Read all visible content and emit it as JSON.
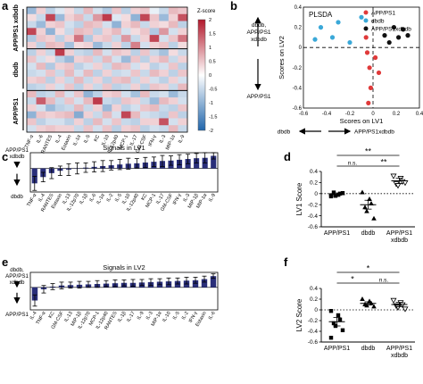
{
  "panel_letters": {
    "a": "a",
    "b": "b",
    "c": "c",
    "d": "d",
    "e": "e",
    "f": "f"
  },
  "chart_data": [
    {
      "panel": "a",
      "type": "heatmap",
      "colorbar": {
        "title": "Z-score",
        "ticks": [
          "2",
          "1.5",
          "1",
          "0.5",
          "0",
          "-0.5",
          "-1",
          "-1.5",
          "-2"
        ],
        "min": -2,
        "max": 2
      },
      "columns": [
        "TNF-α",
        "IL-6",
        "RANTES",
        "IL-4",
        "Eotaxin",
        "IL-1α",
        "IL-5",
        "KC",
        "IL-10",
        "IL-12p40",
        "MCP-1",
        "IL-17",
        "GM-CSF",
        "IFN-γ",
        "IL-3",
        "MIP-1α",
        "IL-9"
      ],
      "row_groups": [
        {
          "label": "APP/PS1 xdbdb",
          "rows": 6
        },
        {
          "label": "dbdb",
          "rows": 6
        },
        {
          "label": "APP/PS1",
          "rows": 6
        }
      ],
      "values": [
        [
          -0.9,
          0.4,
          -0.6,
          -0.3,
          0.3,
          -0.5,
          0.6,
          -0.4,
          -0.7,
          0.5,
          -0.6,
          0.4,
          0.5,
          -0.2,
          -0.5,
          0.6,
          0.5
        ],
        [
          0.3,
          -0.5,
          1.6,
          -0.9,
          0.4,
          0.6,
          -0.5,
          0.9,
          1.7,
          -0.3,
          0.3,
          -1.0,
          1.6,
          0.5,
          -0.9,
          0.4,
          1.5
        ],
        [
          -0.5,
          -0.9,
          0.4,
          0.5,
          -0.4,
          -0.6,
          0.6,
          0.5,
          -0.4,
          -1.0,
          0.4,
          0.6,
          -0.5,
          0.4,
          0.3,
          0.6,
          -0.6
        ],
        [
          1.6,
          0.4,
          -1.0,
          0.3,
          -0.5,
          0.6,
          0.5,
          -0.6,
          0.4,
          0.6,
          -0.4,
          0.3,
          0.5,
          -0.7,
          0.9,
          -0.4,
          0.4
        ],
        [
          -0.7,
          0.5,
          0.4,
          -0.6,
          0.4,
          1.2,
          -0.7,
          0.4,
          0.5,
          -0.5,
          0.9,
          -0.5,
          0.4,
          1.6,
          -0.4,
          0.5,
          1.2
        ],
        [
          0.4,
          -0.6,
          0.6,
          0.5,
          -0.8,
          0.3,
          0.4,
          -0.9,
          -0.5,
          0.4,
          -0.6,
          1.1,
          -0.4,
          0.4,
          0.5,
          -0.6,
          0.3
        ],
        [
          -0.6,
          0.4,
          -0.5,
          1.7,
          0.4,
          -0.5,
          -0.6,
          0.6,
          -0.4,
          0.5,
          0.4,
          -0.6,
          0.5,
          -0.5,
          -0.8,
          0.3,
          -0.5
        ],
        [
          0.5,
          -0.4,
          0.3,
          -0.6,
          -0.9,
          0.4,
          0.5,
          -0.5,
          0.6,
          -0.4,
          -0.9,
          0.5,
          -0.6,
          0.4,
          0.6,
          -0.5,
          0.4
        ],
        [
          -0.4,
          0.6,
          -0.7,
          0.4,
          0.5,
          -0.6,
          -0.4,
          0.4,
          -0.5,
          0.6,
          0.5,
          -0.4,
          0.3,
          -0.6,
          -0.4,
          0.5,
          -0.6
        ],
        [
          -0.5,
          -0.4,
          0.5,
          -0.5,
          0.6,
          -0.4,
          0.6,
          -0.6,
          0.4,
          -0.5,
          -0.4,
          0.5,
          -0.5,
          0.6,
          0.4,
          -0.6,
          0.5
        ],
        [
          0.4,
          0.5,
          -0.6,
          0.4,
          -0.5,
          0.6,
          -0.5,
          0.4,
          -0.6,
          0.5,
          0.6,
          -0.5,
          0.4,
          -0.4,
          -0.6,
          0.4,
          -0.4
        ],
        [
          -0.6,
          -0.5,
          0.4,
          -0.4,
          0.5,
          -0.6,
          0.4,
          -0.5,
          0.5,
          -0.6,
          -0.5,
          0.4,
          -0.6,
          0.5,
          0.4,
          -0.5,
          0.6
        ],
        [
          0.6,
          -0.6,
          -0.5,
          0.6,
          -0.4,
          0.5,
          -1.0,
          -0.6,
          0.4,
          0.5,
          -0.4,
          -0.8,
          0.6,
          -0.5,
          -0.4,
          -0.9,
          -0.5
        ],
        [
          -0.5,
          1.4,
          0.6,
          -0.5,
          0.5,
          -0.4,
          0.6,
          1.7,
          -0.5,
          -0.6,
          0.5,
          0.4,
          -0.5,
          -0.9,
          0.6,
          0.4,
          -0.4
        ],
        [
          0.4,
          -0.4,
          -0.9,
          -0.6,
          -0.5,
          0.6,
          -0.5,
          0.4,
          -0.9,
          0.4,
          -0.6,
          -0.4,
          0.5,
          0.6,
          -0.5,
          -0.6,
          0.5
        ],
        [
          -1.0,
          0.5,
          0.4,
          0.5,
          0.6,
          -1.1,
          0.4,
          -0.5,
          0.6,
          -0.4,
          1.6,
          0.6,
          -0.4,
          -0.5,
          -0.6,
          0.5,
          -0.6
        ],
        [
          0.5,
          -0.6,
          -0.4,
          -0.4,
          -0.6,
          0.4,
          -0.6,
          0.6,
          -0.4,
          0.5,
          -0.5,
          -0.6,
          0.4,
          0.4,
          1.5,
          -0.4,
          0.4
        ],
        [
          -0.4,
          0.4,
          0.5,
          0.4,
          0.4,
          -0.5,
          0.5,
          -0.4,
          0.5,
          -0.6,
          0.4,
          0.5,
          -0.6,
          -0.4,
          -0.5,
          0.6,
          -0.5
        ]
      ]
    },
    {
      "panel": "b",
      "type": "scatter",
      "title": "PLSDA",
      "xlabel": "Scores on LV1",
      "ylabel": "Scores on LV2",
      "xlim": [
        -0.6,
        0.4
      ],
      "ylim": [
        -0.6,
        0.4
      ],
      "xticks": [
        "-0.6",
        "-0.4",
        "-0.2",
        "0",
        "0.2",
        "0.4"
      ],
      "yticks": [
        "0.4",
        "0.2",
        "0",
        "-0.2",
        "-0.4",
        "-0.6"
      ],
      "legend_position": "top-right",
      "series": [
        {
          "name": "APP/PS1",
          "color": "#e03a3a",
          "points": [
            [
              -0.05,
              -0.05
            ],
            [
              0.02,
              -0.1
            ],
            [
              -0.03,
              -0.2
            ],
            [
              0.05,
              -0.25
            ],
            [
              -0.02,
              -0.4
            ],
            [
              -0.04,
              -0.55
            ],
            [
              -0.06,
              0.1
            ]
          ]
        },
        {
          "name": "dbdb",
          "color": "#3aa8d8",
          "points": [
            [
              -0.45,
              0.2
            ],
            [
              -0.3,
              0.25
            ],
            [
              -0.5,
              0.08
            ],
            [
              -0.2,
              0.05
            ],
            [
              -0.1,
              0.3
            ],
            [
              -0.35,
              0.1
            ]
          ]
        },
        {
          "name": "APP/PS1xdbdb",
          "color": "#111111",
          "points": [
            [
              0.1,
              0.12
            ],
            [
              0.18,
              0.2
            ],
            [
              0.22,
              0.1
            ],
            [
              0.26,
              0.18
            ],
            [
              0.3,
              0.12
            ],
            [
              0.14,
              0.05
            ]
          ]
        }
      ],
      "left_arrow_top": "dbdb, APP/PS1 xdbdb",
      "left_arrow_bottom": "APP/PS1",
      "bottom_arrow_left": "dbdb",
      "bottom_arrow_right": "APP/PS1xdbdb"
    },
    {
      "panel": "c",
      "type": "bar",
      "title": "Signals in LV1",
      "ylim": [
        -0.6,
        0.4
      ],
      "arrow_top": "APP/PS1 xdbdb",
      "arrow_bottom": "dbdb",
      "bar_color": "#2a2f7a",
      "categories": [
        "TNF-α",
        "IL-4",
        "RANTES",
        "Eotaxin",
        "IL-13",
        "IL-12p70",
        "IL-1β",
        "IL-6",
        "IL-1α",
        "IL-2",
        "IL-5",
        "IL-10",
        "IL-12p40",
        "KC",
        "MCP-1",
        "IL-17",
        "GM-CSF",
        "IFN-γ",
        "IL-3",
        "MIP-1β",
        "MIP-1α",
        "IL-9"
      ],
      "values": [
        -0.38,
        -0.22,
        -0.12,
        -0.06,
        -0.03,
        0.0,
        0.02,
        0.04,
        0.06,
        0.08,
        0.1,
        0.12,
        0.13,
        0.15,
        0.17,
        0.19,
        0.2,
        0.22,
        0.24,
        0.26,
        0.27,
        0.32
      ],
      "errors": [
        0.18,
        0.12,
        0.14,
        0.12,
        0.15,
        0.14,
        0.12,
        0.13,
        0.14,
        0.12,
        0.13,
        0.14,
        0.12,
        0.13,
        0.12,
        0.14,
        0.12,
        0.13,
        0.12,
        0.12,
        0.13,
        0.08
      ]
    },
    {
      "panel": "d",
      "type": "scatter",
      "ylabel": "LV1 Score",
      "ylim": [
        -0.6,
        0.4
      ],
      "yticks": [
        "0.4",
        "0.2",
        "0",
        "-0.2",
        "-0.4",
        "-0.6"
      ],
      "categories": [
        "APP/PS1",
        "dbdb",
        "APP/PS1 xdbdb"
      ],
      "groups": [
        {
          "name": "APP/PS1",
          "mean": -0.02,
          "sem": 0.03,
          "points": [
            -0.05,
            -0.02,
            0.0,
            0.02,
            -0.04,
            0.01,
            -0.03
          ]
        },
        {
          "name": "dbdb",
          "mean": -0.2,
          "sem": 0.08,
          "points": [
            0.02,
            -0.1,
            -0.18,
            -0.25,
            -0.32,
            -0.45
          ]
        },
        {
          "name": "APP/PS1 xdbdb",
          "mean": 0.23,
          "sem": 0.05,
          "points": [
            0.32,
            0.28,
            0.22,
            0.18,
            0.15,
            0.2
          ]
        }
      ],
      "brackets": [
        {
          "from": 0,
          "to": 2,
          "label": "**",
          "level": 1
        },
        {
          "from": 1,
          "to": 2,
          "label": "**",
          "level": 0
        },
        {
          "from": 0,
          "to": 1,
          "label": "n.s.",
          "level": 0
        }
      ]
    },
    {
      "panel": "e",
      "type": "bar",
      "title": "Signals in LV2",
      "ylim": [
        -0.6,
        0.4
      ],
      "arrow_top": "dbdb, APP/PS1 xdbdb",
      "arrow_bottom": "APP/PS1",
      "bar_color": "#2a2f7a",
      "categories": [
        "IL-4",
        "TNF-α",
        "KC",
        "GM-CSF",
        "IL-13",
        "MIP-1β",
        "IL-12p70",
        "MCP-1",
        "IL-12p40",
        "RANTES",
        "IL-1β",
        "IL-17",
        "IL-9",
        "IL-3",
        "MIP-1α",
        "IL-10",
        "IL-5",
        "IL-2",
        "IFN-γ",
        "Eotaxin",
        "IL-6"
      ],
      "values": [
        -0.35,
        -0.05,
        0.02,
        0.05,
        0.06,
        0.07,
        0.08,
        0.09,
        0.1,
        0.11,
        0.12,
        0.12,
        0.13,
        0.14,
        0.15,
        0.16,
        0.17,
        0.18,
        0.19,
        0.22,
        0.3
      ],
      "errors": [
        0.15,
        0.1,
        0.08,
        0.09,
        0.08,
        0.09,
        0.08,
        0.09,
        0.08,
        0.09,
        0.08,
        0.09,
        0.08,
        0.09,
        0.08,
        0.09,
        0.08,
        0.09,
        0.08,
        0.08,
        0.06
      ]
    },
    {
      "panel": "f",
      "type": "scatter",
      "ylabel": "LV2 Score",
      "ylim": [
        -0.6,
        0.4
      ],
      "yticks": [
        "0.4",
        "0.2",
        "0",
        "-0.2",
        "-0.4",
        "-0.6"
      ],
      "categories": [
        "APP/PS1",
        "dbdb",
        "APP/PS1 xdbdb"
      ],
      "groups": [
        {
          "name": "APP/PS1",
          "mean": -0.22,
          "sem": 0.08,
          "points": [
            -0.02,
            -0.1,
            -0.18,
            -0.25,
            -0.3,
            -0.38,
            -0.52
          ]
        },
        {
          "name": "dbdb",
          "mean": 0.12,
          "sem": 0.03,
          "points": [
            0.2,
            0.16,
            0.12,
            0.1,
            0.08,
            0.06
          ]
        },
        {
          "name": "APP/PS1 xdbdb",
          "mean": 0.1,
          "sem": 0.04,
          "points": [
            0.18,
            0.14,
            0.1,
            0.08,
            0.05,
            0.02
          ]
        }
      ],
      "brackets": [
        {
          "from": 0,
          "to": 2,
          "label": "*",
          "level": 1
        },
        {
          "from": 0,
          "to": 1,
          "label": "*",
          "level": 0
        },
        {
          "from": 1,
          "to": 2,
          "label": "n.s.",
          "level": 0
        }
      ]
    }
  ]
}
